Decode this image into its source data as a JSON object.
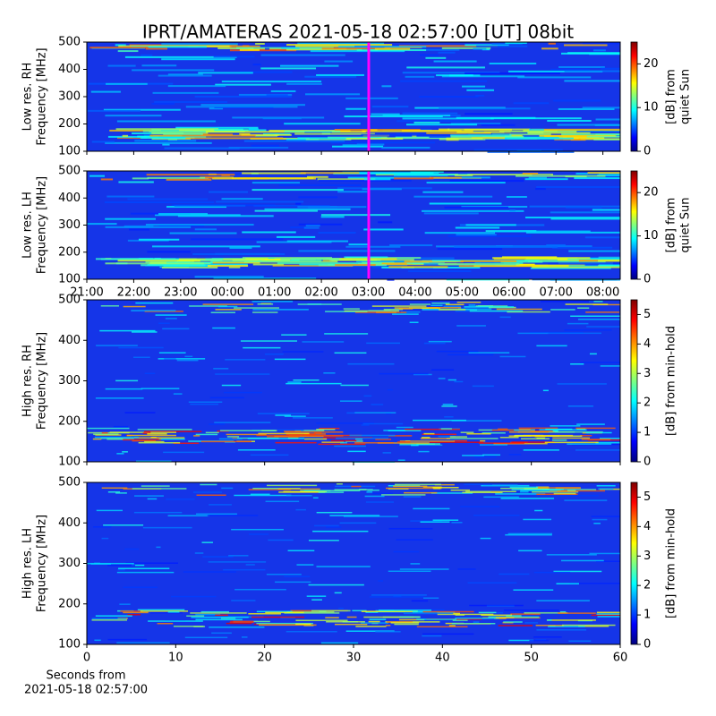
{
  "title": "IPRT/AMATERAS 2021-05-18 02:57:00 [UT]   08bit",
  "chart_data": [
    {
      "type": "heatmap",
      "ylabel": [
        "Low res. RH",
        "Frequency [MHz]"
      ],
      "ylim": [
        100,
        500
      ],
      "yticks": [
        100,
        200,
        300,
        400,
        500
      ],
      "xlim": [
        21,
        32.37
      ],
      "colorbar": {
        "label": [
          "[dB] from",
          "quiet Sun"
        ],
        "lim": [
          0,
          25
        ],
        "ticks": [
          0,
          10,
          20
        ]
      }
    },
    {
      "type": "heatmap",
      "ylabel": [
        "Low res. LH",
        "Frequency [MHz]"
      ],
      "ylim": [
        100,
        500
      ],
      "yticks": [
        100,
        200,
        300,
        400,
        500
      ],
      "xlim": [
        21,
        32.37
      ],
      "xticks": [
        {
          "value": 21,
          "label": "21:00"
        },
        {
          "value": 22,
          "label": "22:00"
        },
        {
          "value": 23,
          "label": "23:00"
        },
        {
          "value": 24,
          "label": "00:00"
        },
        {
          "value": 25,
          "label": "01:00"
        },
        {
          "value": 26,
          "label": "02:00"
        },
        {
          "value": 27,
          "label": "03:00"
        },
        {
          "value": 28,
          "label": "04:00"
        },
        {
          "value": 29,
          "label": "05:00"
        },
        {
          "value": 30,
          "label": "06:00"
        },
        {
          "value": 31,
          "label": "07:00"
        },
        {
          "value": 32,
          "label": "08:00"
        }
      ],
      "colorbar": {
        "label": [
          "[dB] from",
          "quiet Sun"
        ],
        "lim": [
          0,
          25
        ],
        "ticks": [
          0,
          10,
          20
        ]
      }
    },
    {
      "type": "heatmap",
      "ylabel": [
        "High res. RH",
        "Frequency [MHz]"
      ],
      "ylim": [
        100,
        500
      ],
      "yticks": [
        100,
        200,
        300,
        400,
        500
      ],
      "xlim": [
        0,
        60
      ],
      "colorbar": {
        "label": [
          "[dB] from min-hold"
        ],
        "lim": [
          0,
          5.5
        ],
        "ticks": [
          0,
          1,
          2,
          3,
          4,
          5
        ]
      }
    },
    {
      "type": "heatmap",
      "ylabel": [
        "High res. LH",
        "Frequency [MHz]"
      ],
      "ylim": [
        100,
        500
      ],
      "yticks": [
        100,
        200,
        300,
        400,
        500
      ],
      "xlim": [
        0,
        60
      ],
      "xticks": [
        0,
        10,
        20,
        30,
        40,
        50,
        60
      ],
      "xlabel": [
        "Seconds from",
        "2021-05-18 02:57:00"
      ],
      "colorbar": {
        "label": [
          "[dB] from min-hold"
        ],
        "lim": [
          0,
          5.5
        ],
        "ticks": [
          0,
          1,
          2,
          3,
          4,
          5
        ]
      }
    }
  ]
}
